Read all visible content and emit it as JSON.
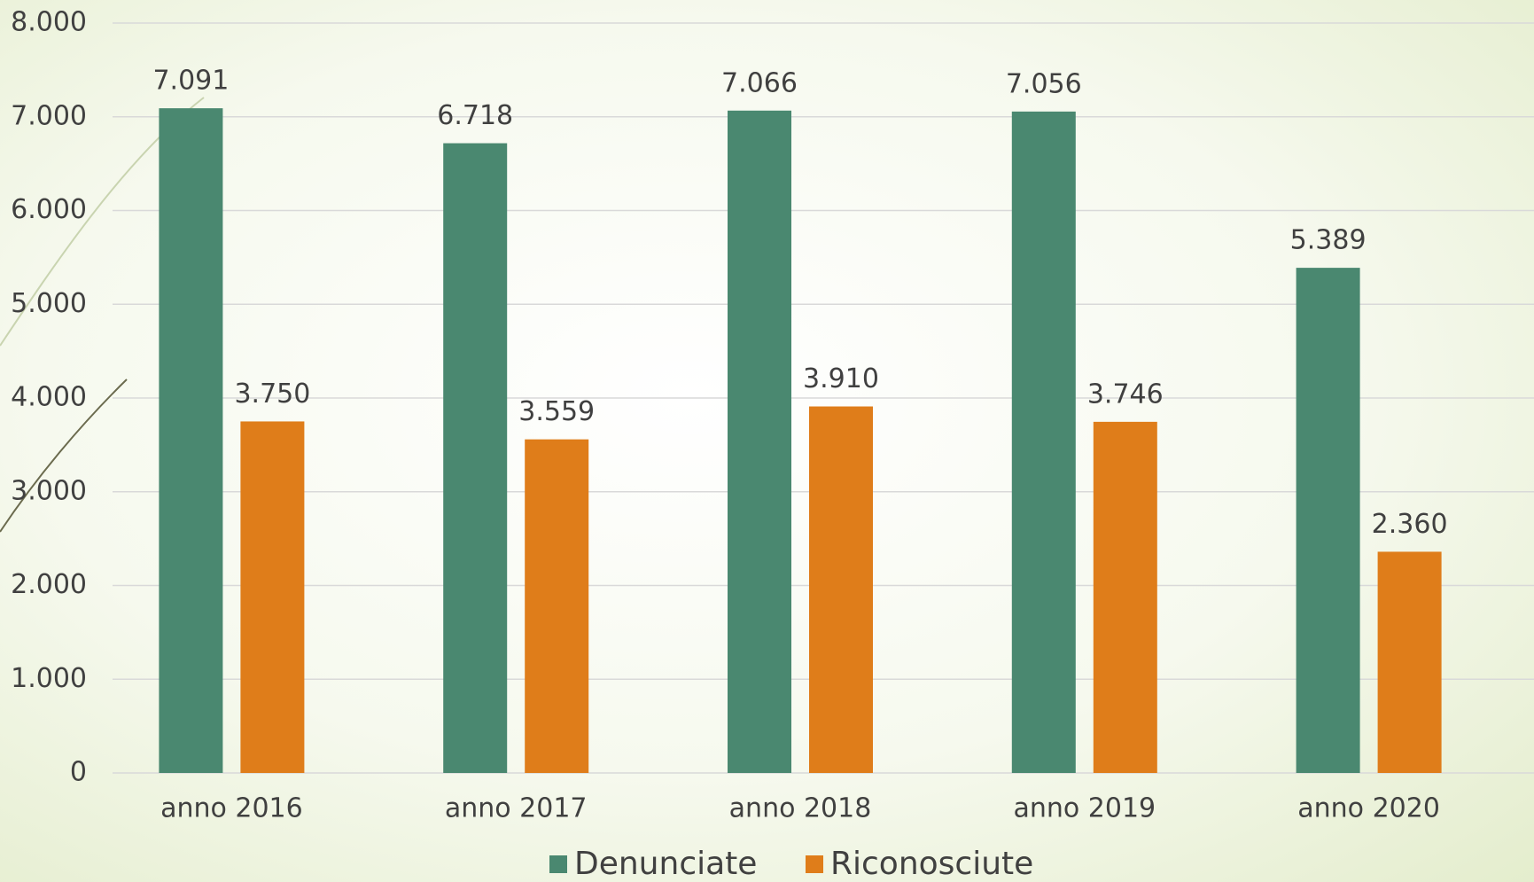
{
  "chart_data": {
    "type": "bar",
    "categories": [
      "anno 2016",
      "anno 2017",
      "anno 2018",
      "anno 2019",
      "anno 2020"
    ],
    "series": [
      {
        "name": "Denunciate",
        "color": "#4a8870",
        "values": [
          7091,
          6718,
          7066,
          7056,
          5389
        ],
        "value_labels": [
          "7.091",
          "6.718",
          "7.066",
          "7.056",
          "5.389"
        ]
      },
      {
        "name": "Riconosciute",
        "color": "#df7d1a",
        "values": [
          3750,
          3559,
          3910,
          3746,
          2360
        ],
        "value_labels": [
          "3.750",
          "3.559",
          "3.910",
          "3.746",
          "2.360"
        ]
      }
    ],
    "ylim": [
      0,
      8000
    ],
    "yticks": [
      0,
      {
        "value": 1000,
        "label": "1.000"
      },
      {
        "value": 2000,
        "label": "2.000"
      },
      {
        "value": 3000,
        "label": "3.000"
      },
      {
        "value": 4000,
        "label": "4.000"
      },
      {
        "value": 5000,
        "label": "5.000"
      },
      {
        "value": 6000,
        "label": "6.000"
      },
      {
        "value": 7000,
        "label": "7.000"
      },
      {
        "value": 8000,
        "label": "8.000"
      }
    ],
    "grid": true,
    "legend": "bottom"
  }
}
